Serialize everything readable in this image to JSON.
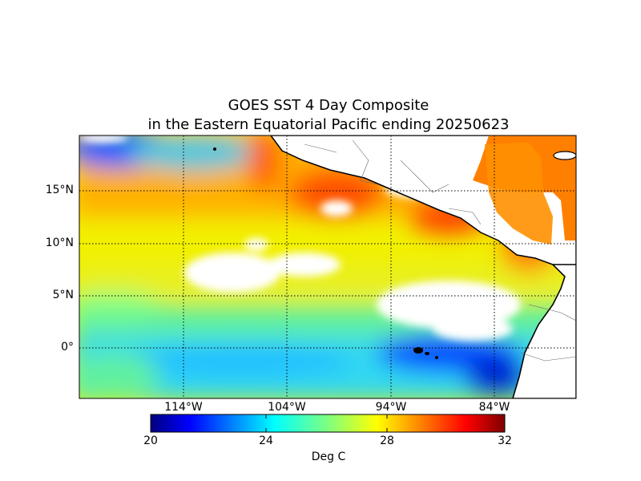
{
  "title": {
    "line1": "GOES SST 4 Day Composite",
    "line2": "in the Eastern Equatorial Pacific ending 20250623"
  },
  "map": {
    "projection": "cylindrical",
    "lon_range_deg": [
      -124,
      -76.5
    ],
    "lat_range_deg": [
      -4.8,
      20.2
    ],
    "lat_labels": [
      "15°N",
      "10°N",
      "5°N",
      "0°"
    ],
    "lon_labels": [
      "114°W",
      "104°W",
      "94°W",
      "84°W"
    ],
    "gridlines": "dotted"
  },
  "colorbar": {
    "min": 20,
    "max": 32,
    "ticks": [
      "20",
      "24",
      "28",
      "32"
    ],
    "label": "Deg C",
    "colormap": "jet",
    "colors": [
      "#00007f",
      "#0000ff",
      "#007fff",
      "#00ffff",
      "#7fff7f",
      "#ffff00",
      "#ff7f00",
      "#ff0000",
      "#7f0000"
    ]
  }
}
